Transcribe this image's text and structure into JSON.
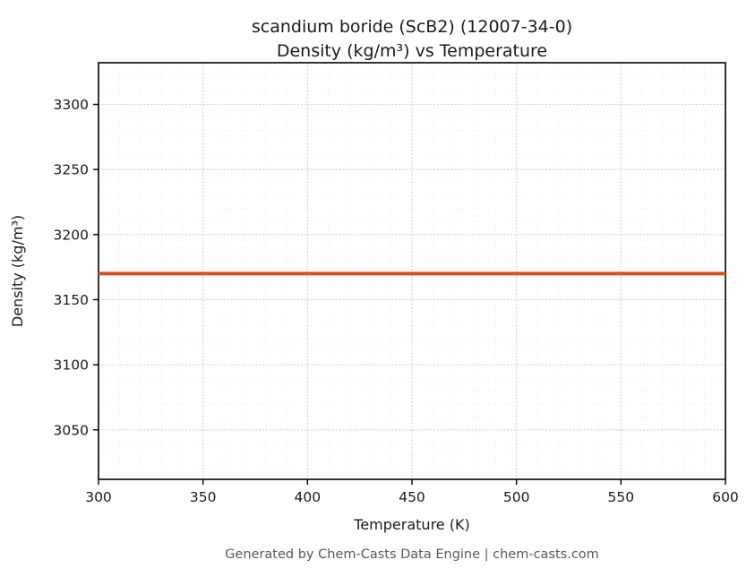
{
  "figure": {
    "title_line1": "scandium boride (ScB2) (12007-34-0)",
    "title_line2": "Density (kg/m³) vs Temperature",
    "footer": "Generated by Chem-Casts Data Engine | chem-casts.com"
  },
  "chart_data": {
    "type": "line",
    "title": "scandium boride (ScB2) (12007-34-0) — Density (kg/m³) vs Temperature",
    "xlabel": "Temperature (K)",
    "ylabel": "Density (kg/m³)",
    "xlim": [
      300,
      600
    ],
    "ylim": [
      3012,
      3332
    ],
    "xticks": [
      300,
      350,
      400,
      450,
      500,
      550,
      600
    ],
    "yticks": [
      3050,
      3100,
      3150,
      3200,
      3250,
      3300
    ],
    "minor_step_x": 10,
    "minor_step_y": 10,
    "grid": true,
    "legend": "none",
    "series": [
      {
        "name": "Density (kg/m³)",
        "x": [
          300,
          600
        ],
        "y": [
          3170,
          3170
        ],
        "color": "#d2521e",
        "linewidth": 4
      }
    ]
  },
  "colors": {
    "major_grid": "#c9c9c9",
    "minor_grid": "#ececec",
    "axis_frame": "#000000",
    "tick_text": "#1a1a1a",
    "footer_text": "#595959",
    "series_line": "#d2521e",
    "background": "#ffffff"
  }
}
